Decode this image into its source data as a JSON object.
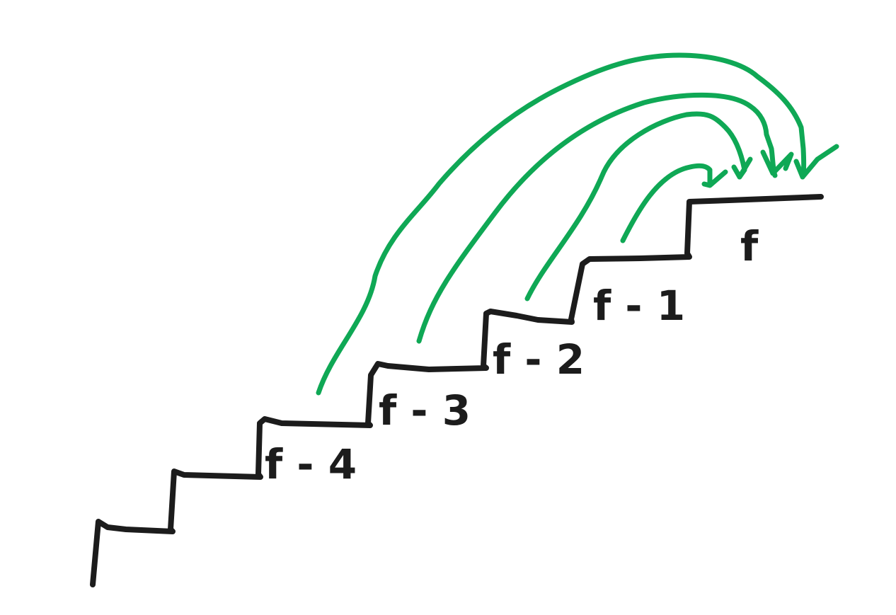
{
  "colors": {
    "stairs": "#1c1c1c",
    "arrows": "#0fa855",
    "background": "#ffffff"
  },
  "labels": {
    "step_f": "f",
    "step_f_minus_1": "f - 1",
    "step_f_minus_2": "f - 2",
    "step_f_minus_3": "f - 3",
    "step_f_minus_4": "f - 4"
  }
}
